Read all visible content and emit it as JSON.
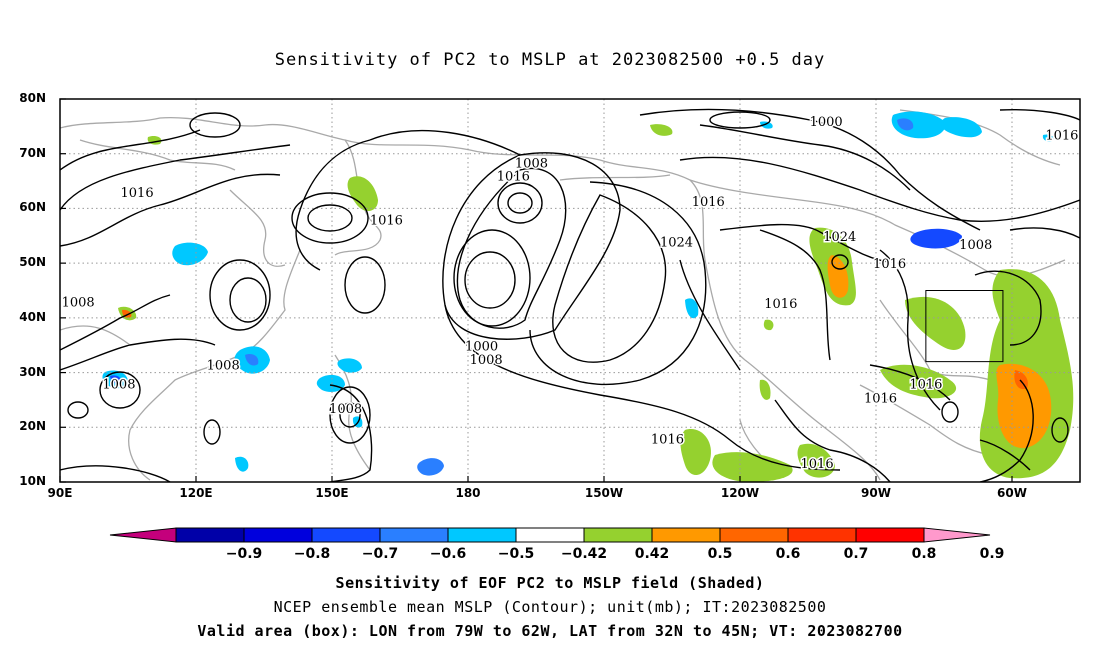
{
  "title": "Sensitivity of PC2 to MSLP at 2023082500 +0.5 day",
  "lat_labels": [
    {
      "text": "80N",
      "lat": 80
    },
    {
      "text": "70N",
      "lat": 70
    },
    {
      "text": "60N",
      "lat": 60
    },
    {
      "text": "50N",
      "lat": 50
    },
    {
      "text": "40N",
      "lat": 40
    },
    {
      "text": "30N",
      "lat": 30
    },
    {
      "text": "20N",
      "lat": 20
    },
    {
      "text": "10N",
      "lat": 10
    }
  ],
  "lon_labels": [
    {
      "text": "90E",
      "lon": 90
    },
    {
      "text": "120E",
      "lon": 120
    },
    {
      "text": "150E",
      "lon": 150
    },
    {
      "text": "180",
      "lon": 180
    },
    {
      "text": "150W",
      "lon": 210
    },
    {
      "text": "120W",
      "lon": 240
    },
    {
      "text": "90W",
      "lon": 270
    },
    {
      "text": "60W",
      "lon": 300
    }
  ],
  "contour_labels": [
    {
      "text": "1000",
      "lon": 259,
      "lat": 75.8
    },
    {
      "text": "1016",
      "lon": 311,
      "lat": 73.3
    },
    {
      "text": "1008",
      "lon": 194,
      "lat": 68.2
    },
    {
      "text": "1016",
      "lon": 190,
      "lat": 65.8
    },
    {
      "text": "1016",
      "lon": 107,
      "lat": 62.8
    },
    {
      "text": "1016",
      "lon": 162,
      "lat": 57.8
    },
    {
      "text": "1016",
      "lon": 233,
      "lat": 61.2
    },
    {
      "text": "1024",
      "lon": 226,
      "lat": 53.8
    },
    {
      "text": "1024",
      "lon": 262,
      "lat": 54.8
    },
    {
      "text": "1008",
      "lon": 292,
      "lat": 53.3
    },
    {
      "text": "1016",
      "lon": 273,
      "lat": 49.8
    },
    {
      "text": "1016",
      "lon": 249,
      "lat": 42.5
    },
    {
      "text": "1000",
      "lon": 183,
      "lat": 34.8
    },
    {
      "text": "1008",
      "lon": 184,
      "lat": 32.3
    },
    {
      "text": "1008",
      "lon": 94,
      "lat": 42.8
    },
    {
      "text": "1008",
      "lon": 126,
      "lat": 31.3
    },
    {
      "text": "1008",
      "lon": 103,
      "lat": 27.8
    },
    {
      "text": "1008",
      "lon": 153,
      "lat": 23.3
    },
    {
      "text": "1016",
      "lon": 281,
      "lat": 27.8
    },
    {
      "text": "1016",
      "lon": 271,
      "lat": 25.3
    },
    {
      "text": "1016",
      "lon": 224,
      "lat": 17.8
    },
    {
      "text": "1016",
      "lon": 257,
      "lat": 13.3
    }
  ],
  "colorbar": {
    "labels": [
      "-0.9",
      "-0.8",
      "-0.7",
      "-0.6",
      "-0.5",
      "-0.42",
      "0.42",
      "0.5",
      "0.6",
      "0.7",
      "0.8",
      "0.9"
    ],
    "colors": [
      "#c4007c",
      "#0000a8",
      "#0000dd",
      "#1449ff",
      "#2a7fff",
      "#00c8ff",
      "#ffffff",
      "#95d12f",
      "#ff9900",
      "#ff6600",
      "#ff3300",
      "#ff0000",
      "#ff99cc"
    ]
  },
  "valid_box": {
    "lon_min": -79,
    "lon_max": -62,
    "lat_min": 32,
    "lat_max": 45
  },
  "captions": [
    "Sensitivity of EOF PC2 to MSLP field (Shaded)",
    "NCEP ensemble mean MSLP (Contour); unit(mb); IT:2023082500",
    "Valid area (box): LON from 79W to 62W, LAT from 32N to 45N; VT: 2023082700"
  ]
}
